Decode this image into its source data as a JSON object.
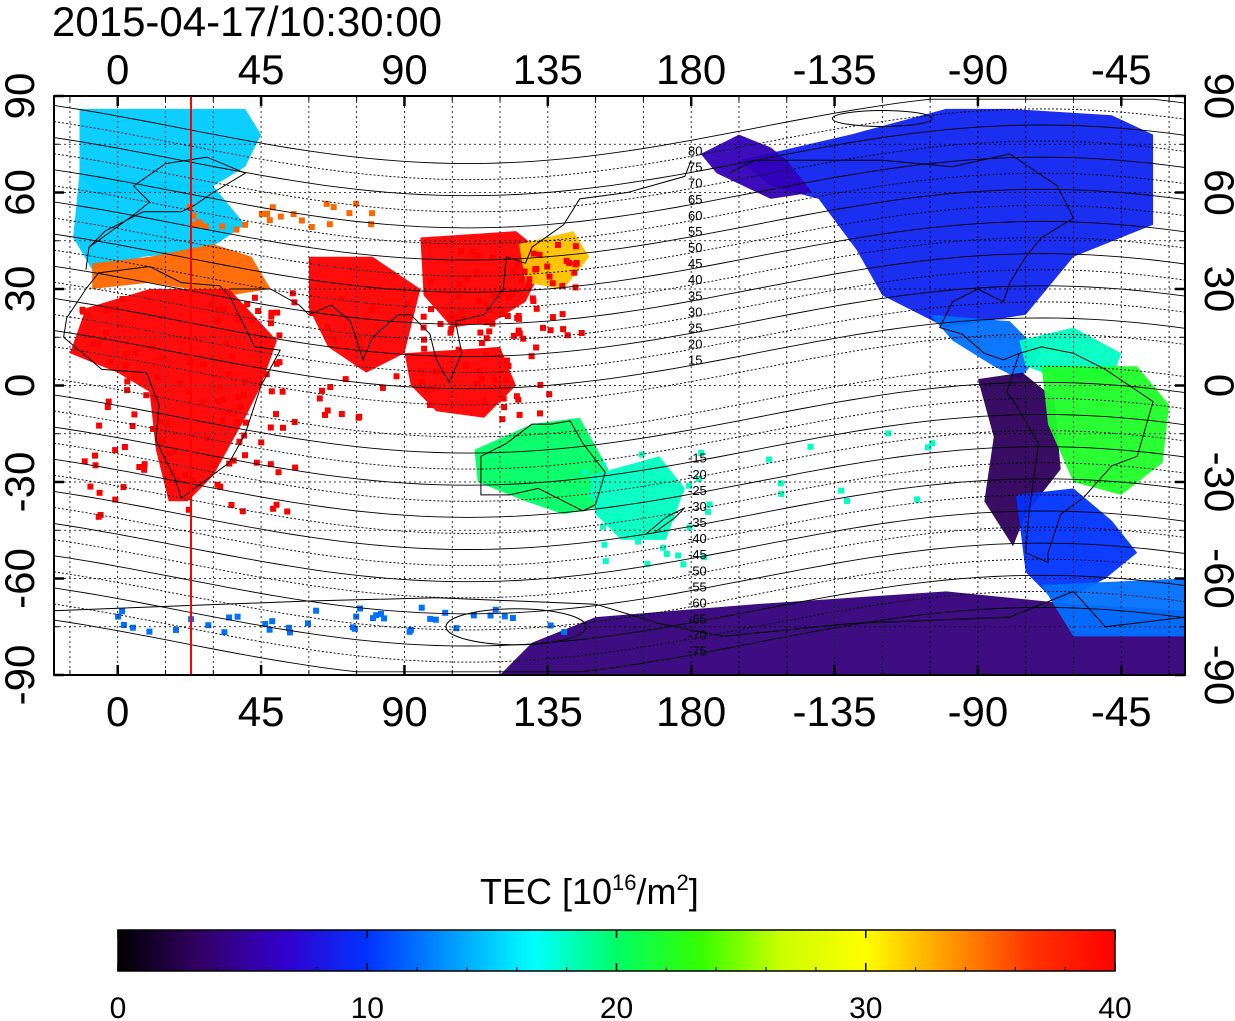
{
  "timestamp": "2015-04-17/10:30:00",
  "map": {
    "top_lon_ticks": [
      "0",
      "45",
      "90",
      "135",
      "180",
      "-135",
      "-90",
      "-45"
    ],
    "bottom_lon_ticks": [
      "0",
      "45",
      "90",
      "135",
      "180",
      "-135",
      "-90",
      "-45"
    ],
    "left_lat_ticks": [
      "90",
      "60",
      "30",
      "0",
      "-30",
      "-60",
      "-90"
    ],
    "right_lat_ticks": [
      "90",
      "60",
      "30",
      "0",
      "-30",
      "-60",
      "-90"
    ],
    "lon_range": [
      -20,
      335
    ],
    "lat_range": [
      -90,
      90
    ],
    "marker_longitude": 23,
    "marker_color": "#ff0000",
    "grid": true,
    "contour_labels_north": [
      "80",
      "75",
      "70",
      "65",
      "60",
      "55",
      "50",
      "45",
      "40",
      "35",
      "30",
      "25",
      "20",
      "15"
    ],
    "contour_labels_south": [
      "-15",
      "-20",
      "-25",
      "-30",
      "-35",
      "-40",
      "-45",
      "-50",
      "-55",
      "-60",
      "-65",
      "-70",
      "-75"
    ],
    "tec_regions": [
      {
        "region": "Europe / North Atlantic",
        "tec": 15
      },
      {
        "region": "Mediterranean / Middle East",
        "tec": 35
      },
      {
        "region": "Africa",
        "tec": 40
      },
      {
        "region": "South Asia",
        "tec": 40
      },
      {
        "region": "East Asia",
        "tec": 40
      },
      {
        "region": "Japan",
        "tec": 32
      },
      {
        "region": "Australia",
        "tec": 20
      },
      {
        "region": "New Zealand / Tasman",
        "tec": 18
      },
      {
        "region": "North America",
        "tec": 9
      },
      {
        "region": "Pacific North",
        "tec": 6
      },
      {
        "region": "Central America",
        "tec": 12
      },
      {
        "region": "Caribbean",
        "tec": 18
      },
      {
        "region": "South America West",
        "tec": 3
      },
      {
        "region": "Brazil",
        "tec": 22
      },
      {
        "region": "Argentina",
        "tec": 10
      },
      {
        "region": "Antarctica Pacific",
        "tec": 4
      },
      {
        "region": "Southern Ocean",
        "tec": 12
      }
    ]
  },
  "colorbar": {
    "title_main": "TEC  [10",
    "title_exp1": "16",
    "title_mid": "/m",
    "title_exp2": "2",
    "title_end": "]",
    "min": 0,
    "max": 40,
    "tick_labels": [
      "0",
      "10",
      "20",
      "30",
      "40"
    ],
    "colors": [
      "#000000",
      "#330066",
      "#3300cc",
      "#0033ff",
      "#0099ff",
      "#00ffff",
      "#00ff66",
      "#33ff00",
      "#ccff00",
      "#ffff00",
      "#ff9900",
      "#ff3300",
      "#ff0000"
    ]
  }
}
